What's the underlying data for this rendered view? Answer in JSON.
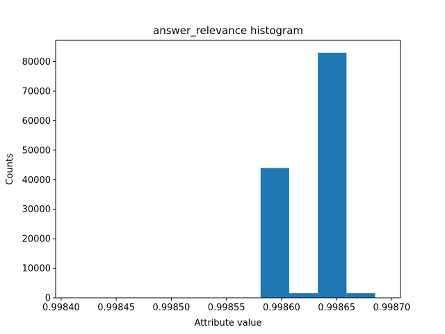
{
  "chart_data": {
    "type": "bar",
    "title": "answer_relevance histogram",
    "xlabel": "Attribute value",
    "ylabel": "Counts",
    "xlim": [
      0.998395,
      0.998708
    ],
    "ylim": [
      0,
      87200
    ],
    "x_ticks": [
      "0.99840",
      "0.99845",
      "0.99850",
      "0.99855",
      "0.99860",
      "0.99865",
      "0.99870"
    ],
    "x_tick_values": [
      0.9984,
      0.99845,
      0.9985,
      0.99855,
      0.9986,
      0.99865,
      0.9987
    ],
    "y_ticks": [
      "0",
      "10000",
      "20000",
      "30000",
      "40000",
      "50000",
      "60000",
      "70000",
      "80000"
    ],
    "y_tick_values": [
      0,
      10000,
      20000,
      30000,
      40000,
      50000,
      60000,
      70000,
      80000
    ],
    "bar_color": "#1f77b4",
    "bins": [
      {
        "x0": 0.998581,
        "x1": 0.998607,
        "count": 44000
      },
      {
        "x0": 0.998607,
        "x1": 0.998633,
        "count": 1600
      },
      {
        "x0": 0.998633,
        "x1": 0.998659,
        "count": 83000
      },
      {
        "x0": 0.998659,
        "x1": 0.998685,
        "count": 1600
      }
    ],
    "grid": false,
    "legend": "none"
  }
}
